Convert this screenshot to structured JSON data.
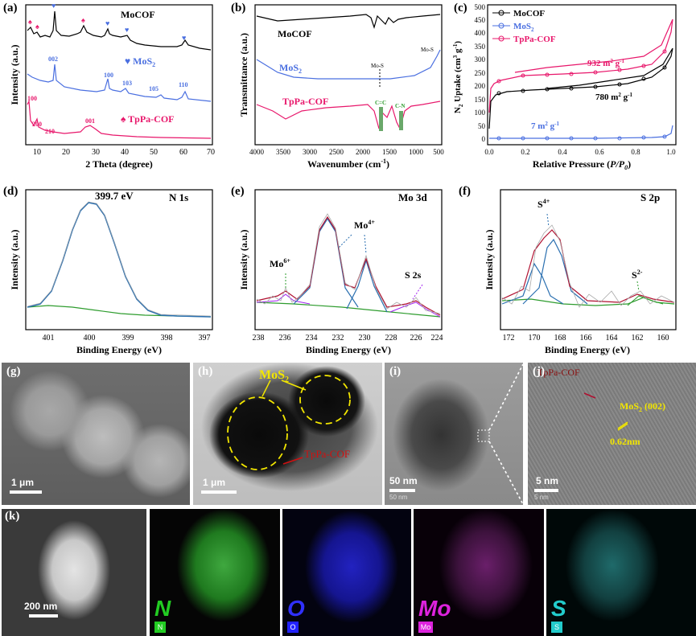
{
  "panels": {
    "a": {
      "label": "(a)",
      "ylabel": "Intensity (a.u.)",
      "xlabel": "2 Theta (degree)",
      "xticks": [
        "10",
        "20",
        "30",
        "40",
        "50",
        "60",
        "70"
      ],
      "legend": {
        "mocof": "MoCOF",
        "mos2": "♥ MoS",
        "mos2_sub": "2",
        "tppa": "♠ TpPa-COF"
      },
      "mos2_peaks": [
        "002",
        "100",
        "103",
        "105",
        "110"
      ],
      "tppa_peaks": [
        "100",
        "200",
        "210",
        "001"
      ]
    },
    "b": {
      "label": "(b)",
      "ylabel": "Transmittance (a.u.)",
      "xlabel": "Wavenumber (cm",
      "xlabel_sup": "-1",
      "xlabel_end": ")",
      "xticks": [
        "4000",
        "3500",
        "3000",
        "2500",
        "2000",
        "1500",
        "1000",
        "500"
      ],
      "legend": {
        "mocof": "MoCOF",
        "mos2": "MoS",
        "mos2_sub": "2",
        "tppa": "TpPa-COF"
      },
      "annotations": [
        "Mo-S",
        "Mo-S",
        "C=C",
        "C-N"
      ]
    },
    "c": {
      "label": "(c)",
      "ylabel_pre": "N",
      "ylabel_sub": "2",
      "ylabel_post": " Uptake (cm",
      "ylabel_sup": "3",
      "ylabel_end": " g",
      "ylabel_sup2": "-1",
      "ylabel_close": ")",
      "xlabel": "Relative Pressure (",
      "xlabel_it": "P/P",
      "xlabel_sub": "0",
      "xlabel_close": ")",
      "xticks": [
        "0.0",
        "0.2",
        "0.4",
        "0.6",
        "0.8",
        "1.0"
      ],
      "yticks": [
        "0",
        "50",
        "100",
        "150",
        "200",
        "250",
        "300",
        "350",
        "400",
        "450",
        "500"
      ],
      "legend": [
        "MoCOF",
        "MoS",
        "TpPa-COF"
      ],
      "legend_sub": "2",
      "areas": {
        "tppa": "932 m",
        "mocof": "780 m",
        "mos2": "7 m"
      },
      "area_unit_sup": "2",
      "area_unit_end": " g",
      "area_unit_sup2": "-1"
    },
    "d": {
      "label": "(d)",
      "title": "N 1s",
      "peak": "399.7 eV",
      "ylabel": "Intensity (a.u.)",
      "xlabel": "Binding Energy (eV)",
      "xticks": [
        "401",
        "400",
        "399",
        "398",
        "397"
      ]
    },
    "e": {
      "label": "(e)",
      "title": "Mo 3d",
      "ylabel": "Intensity (a.u.)",
      "xlabel": "Binding Energy (eV)",
      "xticks": [
        "238",
        "236",
        "234",
        "232",
        "230",
        "228",
        "226",
        "224"
      ],
      "mo6": "Mo",
      "mo6_sup": "6+",
      "mo4": "Mo",
      "mo4_sup": "4+",
      "s2s": "S 2s"
    },
    "f": {
      "label": "(f)",
      "title": "S 2p",
      "ylabel": "Intensity (a.u.)",
      "xlabel": "Binding Energy (eV)",
      "xticks": [
        "172",
        "170",
        "168",
        "166",
        "164",
        "162",
        "160"
      ],
      "s4": "S",
      "s4_sup": "4+",
      "s2": "S",
      "s2_sup": "2-"
    },
    "g": {
      "label": "(g)",
      "scale": "1 μm"
    },
    "h": {
      "label": "(h)",
      "mos2": "MoS",
      "mos2_sub": "2",
      "tppa": "TpPa-COF",
      "scale": "1 μm"
    },
    "i": {
      "label": "(i)",
      "scale": "50 nm",
      "scale_small": "50 nm"
    },
    "j": {
      "label": "(j)",
      "tppa": "TpPa-COF",
      "mos2": "MoS",
      "mos2_sub": "2",
      "mos2_plane": " (002)",
      "spacing": "0.62nm",
      "scale": "5 nm",
      "scale_small": "5 nm"
    },
    "k": {
      "label": "(k)",
      "scale": "200 nm",
      "maps": [
        {
          "big": "N",
          "small": "N",
          "color": "#22cc22"
        },
        {
          "big": "O",
          "small": "O",
          "color": "#2222ff"
        },
        {
          "big": "Mo",
          "small": "Mo",
          "color": "#dd22dd"
        },
        {
          "big": "S",
          "small": "S",
          "color": "#22cccc"
        }
      ]
    }
  },
  "colors": {
    "mocof": "#000000",
    "mos2": "#4a6fe0",
    "tppa": "#e8176b",
    "fit_blue": "#2a6fb0",
    "fit_red": "#b01030",
    "fit_green": "#2e9c2e",
    "fit_purple": "#a020f0",
    "raw_gray": "#a8a8a8"
  }
}
